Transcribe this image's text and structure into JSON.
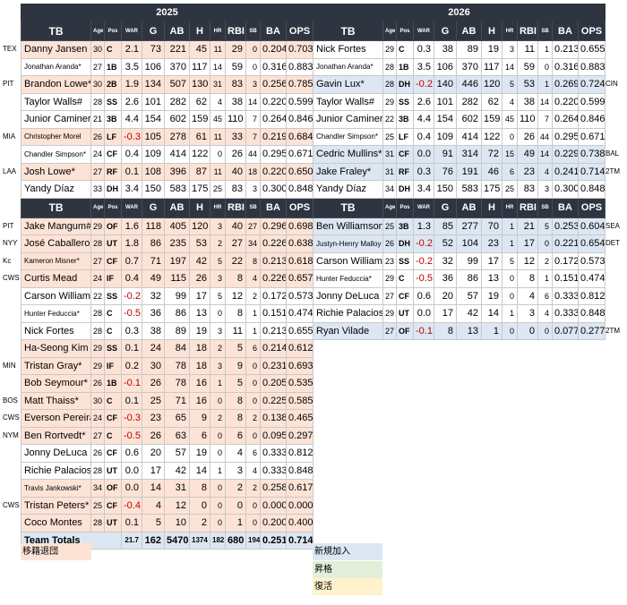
{
  "colors": {
    "header_bg": "#2e3540",
    "departed": "#fde3d6",
    "new": "#dce7f3",
    "promoted": "#e2efd9",
    "returned": "#fff2cc",
    "negative": "#c00000"
  },
  "headers": {
    "team": "TB",
    "age": "Age",
    "pos": "Pos",
    "war": "WAR",
    "g": "G",
    "ab": "AB",
    "h": "H",
    "hr": "HR",
    "rbi": "RBI",
    "sb": "SB",
    "ba": "BA",
    "ops": "OPS"
  },
  "years": {
    "left": "2025",
    "right": "2026"
  },
  "left_top": [
    {
      "tm": "TEX",
      "name": "Danny Jansen",
      "age": "30",
      "pos": "C",
      "war": "2.1",
      "g": "73",
      "ab": "221",
      "h": "45",
      "hr": "11",
      "rbi": "29",
      "sb": "0",
      "ba": "0.204",
      "ops": "0.703",
      "st": "p"
    },
    {
      "tm": "",
      "name": "Jonathan Aranda*",
      "age": "27",
      "pos": "1B",
      "war": "3.5",
      "g": "106",
      "ab": "370",
      "h": "117",
      "hr": "14",
      "rbi": "59",
      "sb": "0",
      "ba": "0.316",
      "ops": "0.883",
      "st": "w",
      "sm": true
    },
    {
      "tm": "PIT",
      "name": "Brandon Lowe*",
      "age": "30",
      "pos": "2B",
      "war": "1.9",
      "g": "134",
      "ab": "507",
      "h": "130",
      "hr": "31",
      "rbi": "83",
      "sb": "3",
      "ba": "0.256",
      "ops": "0.785",
      "st": "p"
    },
    {
      "tm": "",
      "name": "Taylor Walls#",
      "age": "28",
      "pos": "SS",
      "war": "2.6",
      "g": "101",
      "ab": "282",
      "h": "62",
      "hr": "4",
      "rbi": "38",
      "sb": "14",
      "ba": "0.220",
      "ops": "0.599",
      "st": "w"
    },
    {
      "tm": "",
      "name": "Junior Caminero",
      "age": "21",
      "pos": "3B",
      "war": "4.4",
      "g": "154",
      "ab": "602",
      "h": "159",
      "hr": "45",
      "rbi": "110",
      "sb": "7",
      "ba": "0.264",
      "ops": "0.846",
      "st": "w"
    },
    {
      "tm": "MIA",
      "name": "Christopher Morel",
      "age": "26",
      "pos": "LF",
      "war": "-0.3",
      "g": "105",
      "ab": "278",
      "h": "61",
      "hr": "11",
      "rbi": "33",
      "sb": "7",
      "ba": "0.219",
      "ops": "0.684",
      "st": "p",
      "sm": true
    },
    {
      "tm": "",
      "name": "Chandler Simpson*",
      "age": "24",
      "pos": "CF",
      "war": "0.4",
      "g": "109",
      "ab": "414",
      "h": "122",
      "hr": "0",
      "rbi": "26",
      "sb": "44",
      "ba": "0.295",
      "ops": "0.671",
      "st": "w",
      "sm": true
    },
    {
      "tm": "LAA",
      "name": "Josh Lowe*",
      "age": "27",
      "pos": "RF",
      "war": "0.1",
      "g": "108",
      "ab": "396",
      "h": "87",
      "hr": "11",
      "rbi": "40",
      "sb": "18",
      "ba": "0.220",
      "ops": "0.650",
      "st": "p"
    },
    {
      "tm": "",
      "name": "Yandy Díaz",
      "age": "33",
      "pos": "DH",
      "war": "3.4",
      "g": "150",
      "ab": "583",
      "h": "175",
      "hr": "25",
      "rbi": "83",
      "sb": "3",
      "ba": "0.300",
      "ops": "0.848",
      "st": "w"
    }
  ],
  "right_top": [
    {
      "tm": "",
      "name": "Nick Fortes",
      "age": "29",
      "pos": "C",
      "war": "0.3",
      "g": "38",
      "ab": "89",
      "h": "19",
      "hr": "3",
      "rbi": "11",
      "sb": "1",
      "ba": "0.213",
      "ops": "0.655",
      "st": "w"
    },
    {
      "tm": "",
      "name": "Jonathan Aranda*",
      "age": "28",
      "pos": "1B",
      "war": "3.5",
      "g": "106",
      "ab": "370",
      "h": "117",
      "hr": "14",
      "rbi": "59",
      "sb": "0",
      "ba": "0.316",
      "ops": "0.883",
      "st": "w",
      "sm": true
    },
    {
      "tm": "CIN",
      "name": "Gavin Lux*",
      "age": "28",
      "pos": "DH",
      "war": "-0.2",
      "g": "140",
      "ab": "446",
      "h": "120",
      "hr": "5",
      "rbi": "53",
      "sb": "1",
      "ba": "0.269",
      "ops": "0.724",
      "st": "b"
    },
    {
      "tm": "",
      "name": "Taylor Walls#",
      "age": "29",
      "pos": "SS",
      "war": "2.6",
      "g": "101",
      "ab": "282",
      "h": "62",
      "hr": "4",
      "rbi": "38",
      "sb": "14",
      "ba": "0.220",
      "ops": "0.599",
      "st": "w"
    },
    {
      "tm": "",
      "name": "Junior Caminero",
      "age": "22",
      "pos": "3B",
      "war": "4.4",
      "g": "154",
      "ab": "602",
      "h": "159",
      "hr": "45",
      "rbi": "110",
      "sb": "7",
      "ba": "0.264",
      "ops": "0.846",
      "st": "w"
    },
    {
      "tm": "",
      "name": "Chandler Simpson*",
      "age": "25",
      "pos": "LF",
      "war": "0.4",
      "g": "109",
      "ab": "414",
      "h": "122",
      "hr": "0",
      "rbi": "26",
      "sb": "44",
      "ba": "0.295",
      "ops": "0.671",
      "st": "w",
      "sm": true
    },
    {
      "tm": "BAL",
      "name": "Cedric Mullins*",
      "age": "31",
      "pos": "CF",
      "war": "0.0",
      "g": "91",
      "ab": "314",
      "h": "72",
      "hr": "15",
      "rbi": "49",
      "sb": "14",
      "ba": "0.229",
      "ops": "0.738",
      "st": "b"
    },
    {
      "tm": "2TM",
      "name": "Jake Fraley*",
      "age": "31",
      "pos": "RF",
      "war": "0.3",
      "g": "76",
      "ab": "191",
      "h": "46",
      "hr": "6",
      "rbi": "23",
      "sb": "4",
      "ba": "0.241",
      "ops": "0.714",
      "st": "b"
    },
    {
      "tm": "",
      "name": "Yandy Díaz",
      "age": "34",
      "pos": "DH",
      "war": "3.4",
      "g": "150",
      "ab": "583",
      "h": "175",
      "hr": "25",
      "rbi": "83",
      "sb": "3",
      "ba": "0.300",
      "ops": "0.848",
      "st": "w"
    }
  ],
  "left_bottom": [
    {
      "tm": "PIT",
      "name": "Jake Mangum#",
      "age": "29",
      "pos": "OF",
      "war": "1.6",
      "g": "118",
      "ab": "405",
      "h": "120",
      "hr": "3",
      "rbi": "40",
      "sb": "27",
      "ba": "0.296",
      "ops": "0.698",
      "st": "p"
    },
    {
      "tm": "NYY",
      "name": "José Caballero",
      "age": "28",
      "pos": "UT",
      "war": "1.8",
      "g": "86",
      "ab": "235",
      "h": "53",
      "hr": "2",
      "rbi": "27",
      "sb": "34",
      "ba": "0.226",
      "ops": "0.638",
      "st": "p"
    },
    {
      "tm": "Kc",
      "name": "Kameron Misner*",
      "age": "27",
      "pos": "CF",
      "war": "0.7",
      "g": "71",
      "ab": "197",
      "h": "42",
      "hr": "5",
      "rbi": "22",
      "sb": "8",
      "ba": "0.213",
      "ops": "0.618",
      "st": "p",
      "sm": true
    },
    {
      "tm": "CWS",
      "name": "Curtis Mead",
      "age": "24",
      "pos": "IF",
      "war": "0.4",
      "g": "49",
      "ab": "115",
      "h": "26",
      "hr": "3",
      "rbi": "8",
      "sb": "4",
      "ba": "0.226",
      "ops": "0.657",
      "st": "p"
    },
    {
      "tm": "",
      "name": "Carson Williams",
      "age": "22",
      "pos": "SS",
      "war": "-0.2",
      "g": "32",
      "ab": "99",
      "h": "17",
      "hr": "5",
      "rbi": "12",
      "sb": "2",
      "ba": "0.172",
      "ops": "0.573",
      "st": "w"
    },
    {
      "tm": "",
      "name": "Hunter Feduccia*",
      "age": "28",
      "pos": "C",
      "war": "-0.5",
      "g": "36",
      "ab": "86",
      "h": "13",
      "hr": "0",
      "rbi": "8",
      "sb": "1",
      "ba": "0.151",
      "ops": "0.474",
      "st": "w",
      "sm": true
    },
    {
      "tm": "",
      "name": "Nick Fortes",
      "age": "28",
      "pos": "C",
      "war": "0.3",
      "g": "38",
      "ab": "89",
      "h": "19",
      "hr": "3",
      "rbi": "11",
      "sb": "1",
      "ba": "0.213",
      "ops": "0.655",
      "st": "w"
    },
    {
      "tm": "",
      "name": "Ha-Seong Kim",
      "age": "29",
      "pos": "SS",
      "war": "0.1",
      "g": "24",
      "ab": "84",
      "h": "18",
      "hr": "2",
      "rbi": "5",
      "sb": "6",
      "ba": "0.214",
      "ops": "0.612",
      "st": "p"
    },
    {
      "tm": "MIN",
      "name": "Tristan Gray*",
      "age": "29",
      "pos": "IF",
      "war": "0.2",
      "g": "30",
      "ab": "78",
      "h": "18",
      "hr": "3",
      "rbi": "9",
      "sb": "0",
      "ba": "0.231",
      "ops": "0.693",
      "st": "p"
    },
    {
      "tm": "",
      "name": "Bob Seymour*",
      "age": "26",
      "pos": "1B",
      "war": "-0.1",
      "g": "26",
      "ab": "78",
      "h": "16",
      "hr": "1",
      "rbi": "5",
      "sb": "0",
      "ba": "0.205",
      "ops": "0.535",
      "st": "p"
    },
    {
      "tm": "BOS",
      "name": "Matt Thaiss*",
      "age": "30",
      "pos": "C",
      "war": "0.1",
      "g": "25",
      "ab": "71",
      "h": "16",
      "hr": "0",
      "rbi": "8",
      "sb": "0",
      "ba": "0.225",
      "ops": "0.585",
      "st": "p"
    },
    {
      "tm": "CWS",
      "name": "Everson Pereira",
      "age": "24",
      "pos": "CF",
      "war": "-0.3",
      "g": "23",
      "ab": "65",
      "h": "9",
      "hr": "2",
      "rbi": "8",
      "sb": "2",
      "ba": "0.138",
      "ops": "0.465",
      "st": "p"
    },
    {
      "tm": "NYM",
      "name": "Ben Rortvedt*",
      "age": "27",
      "pos": "C",
      "war": "-0.5",
      "g": "26",
      "ab": "63",
      "h": "6",
      "hr": "0",
      "rbi": "6",
      "sb": "0",
      "ba": "0.095",
      "ops": "0.297",
      "st": "p"
    },
    {
      "tm": "",
      "name": "Jonny DeLuca",
      "age": "26",
      "pos": "CF",
      "war": "0.6",
      "g": "20",
      "ab": "57",
      "h": "19",
      "hr": "0",
      "rbi": "4",
      "sb": "6",
      "ba": "0.333",
      "ops": "0.812",
      "st": "w"
    },
    {
      "tm": "",
      "name": "Richie Palacios*",
      "age": "28",
      "pos": "UT",
      "war": "0.0",
      "g": "17",
      "ab": "42",
      "h": "14",
      "hr": "1",
      "rbi": "3",
      "sb": "4",
      "ba": "0.333",
      "ops": "0.848",
      "st": "w"
    },
    {
      "tm": "",
      "name": "Travis Jankowski*",
      "age": "34",
      "pos": "OF",
      "war": "0.0",
      "g": "14",
      "ab": "31",
      "h": "8",
      "hr": "0",
      "rbi": "2",
      "sb": "2",
      "ba": "0.258",
      "ops": "0.617",
      "st": "p",
      "sm": true
    },
    {
      "tm": "CWS",
      "name": "Tristan Peters*",
      "age": "25",
      "pos": "CF",
      "war": "-0.4",
      "g": "4",
      "ab": "12",
      "h": "0",
      "hr": "0",
      "rbi": "0",
      "sb": "0",
      "ba": "0.000",
      "ops": "0.000",
      "st": "p"
    },
    {
      "tm": "",
      "name": "Coco Montes",
      "age": "28",
      "pos": "UT",
      "war": "0.1",
      "g": "5",
      "ab": "10",
      "h": "2",
      "hr": "0",
      "rbi": "1",
      "sb": "0",
      "ba": "0.200",
      "ops": "0.400",
      "st": "p"
    }
  ],
  "right_bottom": [
    {
      "tm": "SEA",
      "name": "Ben Williamson",
      "age": "25",
      "pos": "3B",
      "war": "1.3",
      "g": "85",
      "ab": "277",
      "h": "70",
      "hr": "1",
      "rbi": "21",
      "sb": "5",
      "ba": "0.253",
      "ops": "0.604",
      "st": "b"
    },
    {
      "tm": "DET",
      "name": "Justyn-Henry Malloy",
      "age": "26",
      "pos": "DH",
      "war": "-0.2",
      "g": "52",
      "ab": "104",
      "h": "23",
      "hr": "1",
      "rbi": "17",
      "sb": "0",
      "ba": "0.221",
      "ops": "0.654",
      "st": "b",
      "sm": true
    },
    {
      "tm": "",
      "name": "Carson Williams",
      "age": "23",
      "pos": "SS",
      "war": "-0.2",
      "g": "32",
      "ab": "99",
      "h": "17",
      "hr": "5",
      "rbi": "12",
      "sb": "2",
      "ba": "0.172",
      "ops": "0.573",
      "st": "w"
    },
    {
      "tm": "",
      "name": "Hunter Feduccia*",
      "age": "29",
      "pos": "C",
      "war": "-0.5",
      "g": "36",
      "ab": "86",
      "h": "13",
      "hr": "0",
      "rbi": "8",
      "sb": "1",
      "ba": "0.151",
      "ops": "0.474",
      "st": "w",
      "sm": true
    },
    {
      "tm": "",
      "name": "Jonny DeLuca",
      "age": "27",
      "pos": "CF",
      "war": "0.6",
      "g": "20",
      "ab": "57",
      "h": "19",
      "hr": "0",
      "rbi": "4",
      "sb": "6",
      "ba": "0.333",
      "ops": "0.812",
      "st": "w"
    },
    {
      "tm": "",
      "name": "Richie Palacios*",
      "age": "29",
      "pos": "UT",
      "war": "0.0",
      "g": "17",
      "ab": "42",
      "h": "14",
      "hr": "1",
      "rbi": "3",
      "sb": "4",
      "ba": "0.333",
      "ops": "0.848",
      "st": "w"
    },
    {
      "tm": "2TM",
      "name": "Ryan Vilade",
      "age": "27",
      "pos": "OF",
      "war": "-0.1",
      "g": "8",
      "ab": "13",
      "h": "1",
      "hr": "0",
      "rbi": "0",
      "sb": "0",
      "ba": "0.077",
      "ops": "0.277",
      "st": "b"
    }
  ],
  "totals": {
    "label": "Team Totals",
    "war": "21.7",
    "g": "162",
    "ab": "5470",
    "h": "1374",
    "hr": "182",
    "rbi": "680",
    "sb": "194",
    "ba": "0.251",
    "ops": "0.714"
  },
  "legend": {
    "departed": "移籍退団",
    "new": "新規加入",
    "promoted": "昇格",
    "returned": "復活"
  }
}
